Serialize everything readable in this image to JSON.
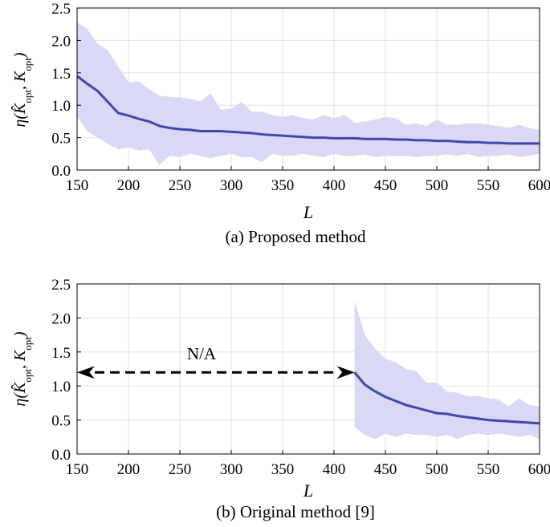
{
  "chart_data": [
    {
      "type": "line",
      "caption": "(a) Proposed method",
      "xlabel": "L",
      "ylabel": {
        "prefix": "η(",
        "k_hat": "K̂",
        "sub1": "opt",
        "sep": ", ",
        "k": "K",
        "sub2": "opt",
        "suffix": ")"
      },
      "xlim": [
        150,
        600
      ],
      "ylim": [
        0,
        2.5
      ],
      "xticks": [
        150,
        200,
        250,
        300,
        350,
        400,
        450,
        500,
        550,
        600
      ],
      "yticks": [
        0.0,
        0.5,
        1.0,
        1.5,
        2.0,
        2.5
      ],
      "ytick_labels": [
        "0.0",
        "0.5",
        "1.0",
        "1.5",
        "2.0",
        "2.5"
      ],
      "grid": true,
      "line_color": "#3c4aa8",
      "band_color": "#d9d9f5",
      "x": [
        150,
        160,
        170,
        180,
        190,
        200,
        210,
        220,
        230,
        240,
        250,
        260,
        270,
        280,
        290,
        300,
        310,
        320,
        330,
        340,
        350,
        360,
        370,
        380,
        390,
        400,
        410,
        420,
        430,
        440,
        450,
        460,
        470,
        480,
        490,
        500,
        510,
        520,
        530,
        540,
        550,
        560,
        570,
        580,
        590,
        600
      ],
      "mean": [
        1.45,
        1.33,
        1.22,
        1.05,
        0.88,
        0.84,
        0.79,
        0.75,
        0.68,
        0.65,
        0.63,
        0.62,
        0.6,
        0.6,
        0.6,
        0.59,
        0.58,
        0.57,
        0.55,
        0.54,
        0.53,
        0.52,
        0.51,
        0.5,
        0.5,
        0.49,
        0.49,
        0.49,
        0.48,
        0.48,
        0.48,
        0.47,
        0.47,
        0.46,
        0.46,
        0.45,
        0.45,
        0.44,
        0.43,
        0.43,
        0.42,
        0.42,
        0.41,
        0.41,
        0.41,
        0.41
      ],
      "upper": [
        2.28,
        2.18,
        1.95,
        1.85,
        1.6,
        1.35,
        1.37,
        1.25,
        1.15,
        1.13,
        1.12,
        1.1,
        1.06,
        1.18,
        0.93,
        0.95,
        1.05,
        0.9,
        0.9,
        0.85,
        0.82,
        0.85,
        0.8,
        0.78,
        0.85,
        0.8,
        0.85,
        0.73,
        0.75,
        0.78,
        0.82,
        0.8,
        0.7,
        0.72,
        0.68,
        0.78,
        0.7,
        0.7,
        0.72,
        0.72,
        0.7,
        0.68,
        0.65,
        0.7,
        0.65,
        0.62
      ],
      "lower": [
        0.82,
        0.6,
        0.5,
        0.4,
        0.32,
        0.35,
        0.3,
        0.32,
        0.08,
        0.22,
        0.2,
        0.25,
        0.22,
        0.18,
        0.22,
        0.25,
        0.2,
        0.2,
        0.12,
        0.25,
        0.22,
        0.22,
        0.25,
        0.22,
        0.2,
        0.25,
        0.22,
        0.22,
        0.24,
        0.2,
        0.22,
        0.22,
        0.22,
        0.2,
        0.22,
        0.22,
        0.24,
        0.22,
        0.25,
        0.2,
        0.22,
        0.22,
        0.24,
        0.2,
        0.22,
        0.25
      ]
    },
    {
      "type": "line",
      "caption": "(b) Original method [9]",
      "xlabel": "L",
      "ylabel": {
        "prefix": "η(",
        "k_hat": "K̂",
        "sub1": "opt",
        "sep": ", ",
        "k": "K",
        "sub2": "opt",
        "suffix": ")"
      },
      "xlim": [
        150,
        600
      ],
      "ylim": [
        0,
        2.5
      ],
      "xticks": [
        150,
        200,
        250,
        300,
        350,
        400,
        450,
        500,
        550,
        600
      ],
      "yticks": [
        0.0,
        0.5,
        1.0,
        1.5,
        2.0,
        2.5
      ],
      "ytick_labels": [
        "0.0",
        "0.5",
        "1.0",
        "1.5",
        "2.0",
        "2.5"
      ],
      "grid": true,
      "line_color": "#3c4aa8",
      "band_color": "#d9d9f5",
      "annotation": {
        "text": "N/A",
        "x_from": 150,
        "x_to": 420,
        "y": 1.2,
        "style": "dashed double arrow"
      },
      "x": [
        420,
        430,
        440,
        450,
        460,
        470,
        480,
        490,
        500,
        510,
        520,
        530,
        540,
        550,
        560,
        570,
        580,
        590,
        600
      ],
      "mean": [
        1.2,
        1.02,
        0.92,
        0.84,
        0.78,
        0.72,
        0.68,
        0.64,
        0.6,
        0.59,
        0.56,
        0.54,
        0.52,
        0.5,
        0.49,
        0.48,
        0.47,
        0.46,
        0.45
      ],
      "upper": [
        2.25,
        1.75,
        1.55,
        1.4,
        1.35,
        1.25,
        1.22,
        1.05,
        1.05,
        0.92,
        0.9,
        0.85,
        0.85,
        0.82,
        0.8,
        0.7,
        0.82,
        0.72,
        0.7
      ],
      "lower": [
        0.4,
        0.28,
        0.22,
        0.3,
        0.25,
        0.3,
        0.28,
        0.28,
        0.25,
        0.28,
        0.22,
        0.28,
        0.3,
        0.28,
        0.3,
        0.28,
        0.25,
        0.28,
        0.22
      ]
    }
  ]
}
